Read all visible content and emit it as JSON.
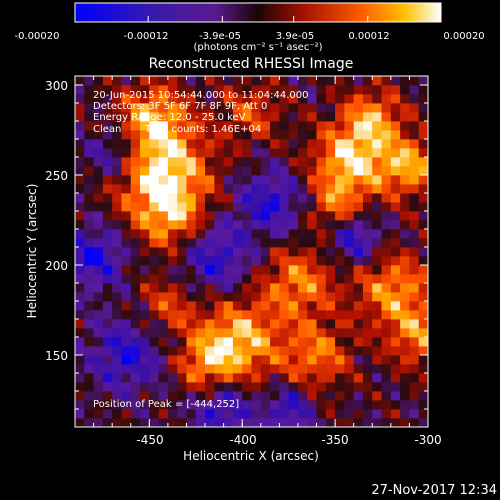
{
  "colorbar": {
    "tick_labels": [
      "-0.00020",
      "-0.00012",
      "-3.9e-05",
      "3.9e-05",
      "0.00012",
      "0.00020"
    ],
    "units_label": "(photons cm⁻² s⁻¹ asec⁻²)"
  },
  "title": "Reconstructed RHESSI Image",
  "annotations": {
    "time": "20-Jun-2015 10:54:44.000 to 11:04:44.000",
    "detectors": "Detectors: 3F 5F 6F 7F 8F 9F, Att 0",
    "energy": "Energy Range: 12.0 - 25.0 keV",
    "clean": "Clean",
    "counts": "Total counts: 1.46E+04",
    "peak": "Position of Peak = [-444,252]"
  },
  "footer": {
    "timestamp": "27-Nov-2017 12:34"
  },
  "chart_data": {
    "type": "heatmap",
    "title": "Reconstructed RHESSI Image",
    "xlabel": "Heliocentric X (arcsec)",
    "ylabel": "Heliocentric Y (arcsec)",
    "xlim": [
      -490,
      -300
    ],
    "ylim": [
      110,
      305
    ],
    "x_ticks": [
      -450,
      -400,
      -350,
      -300
    ],
    "y_ticks": [
      150,
      200,
      250,
      300
    ],
    "x_tick_labels": [
      "-450",
      "-400",
      "-350",
      "-300"
    ],
    "y_tick_labels": [
      "150",
      "200",
      "250",
      "300"
    ],
    "colorbar_range": [
      -0.0002,
      0.0002
    ],
    "colormap": "dark-blue-purple-red-yellow-white",
    "peak_position": [
      -444,
      252
    ],
    "grid": false,
    "colors": {
      "background": "#000000",
      "text": "#ffffff",
      "cmap_stops": [
        "#0000ff",
        "#3a10a8",
        "#5a1aa0",
        "#2a0a10",
        "#b01000",
        "#ff5000",
        "#ffb000",
        "#ffffff"
      ]
    }
  }
}
